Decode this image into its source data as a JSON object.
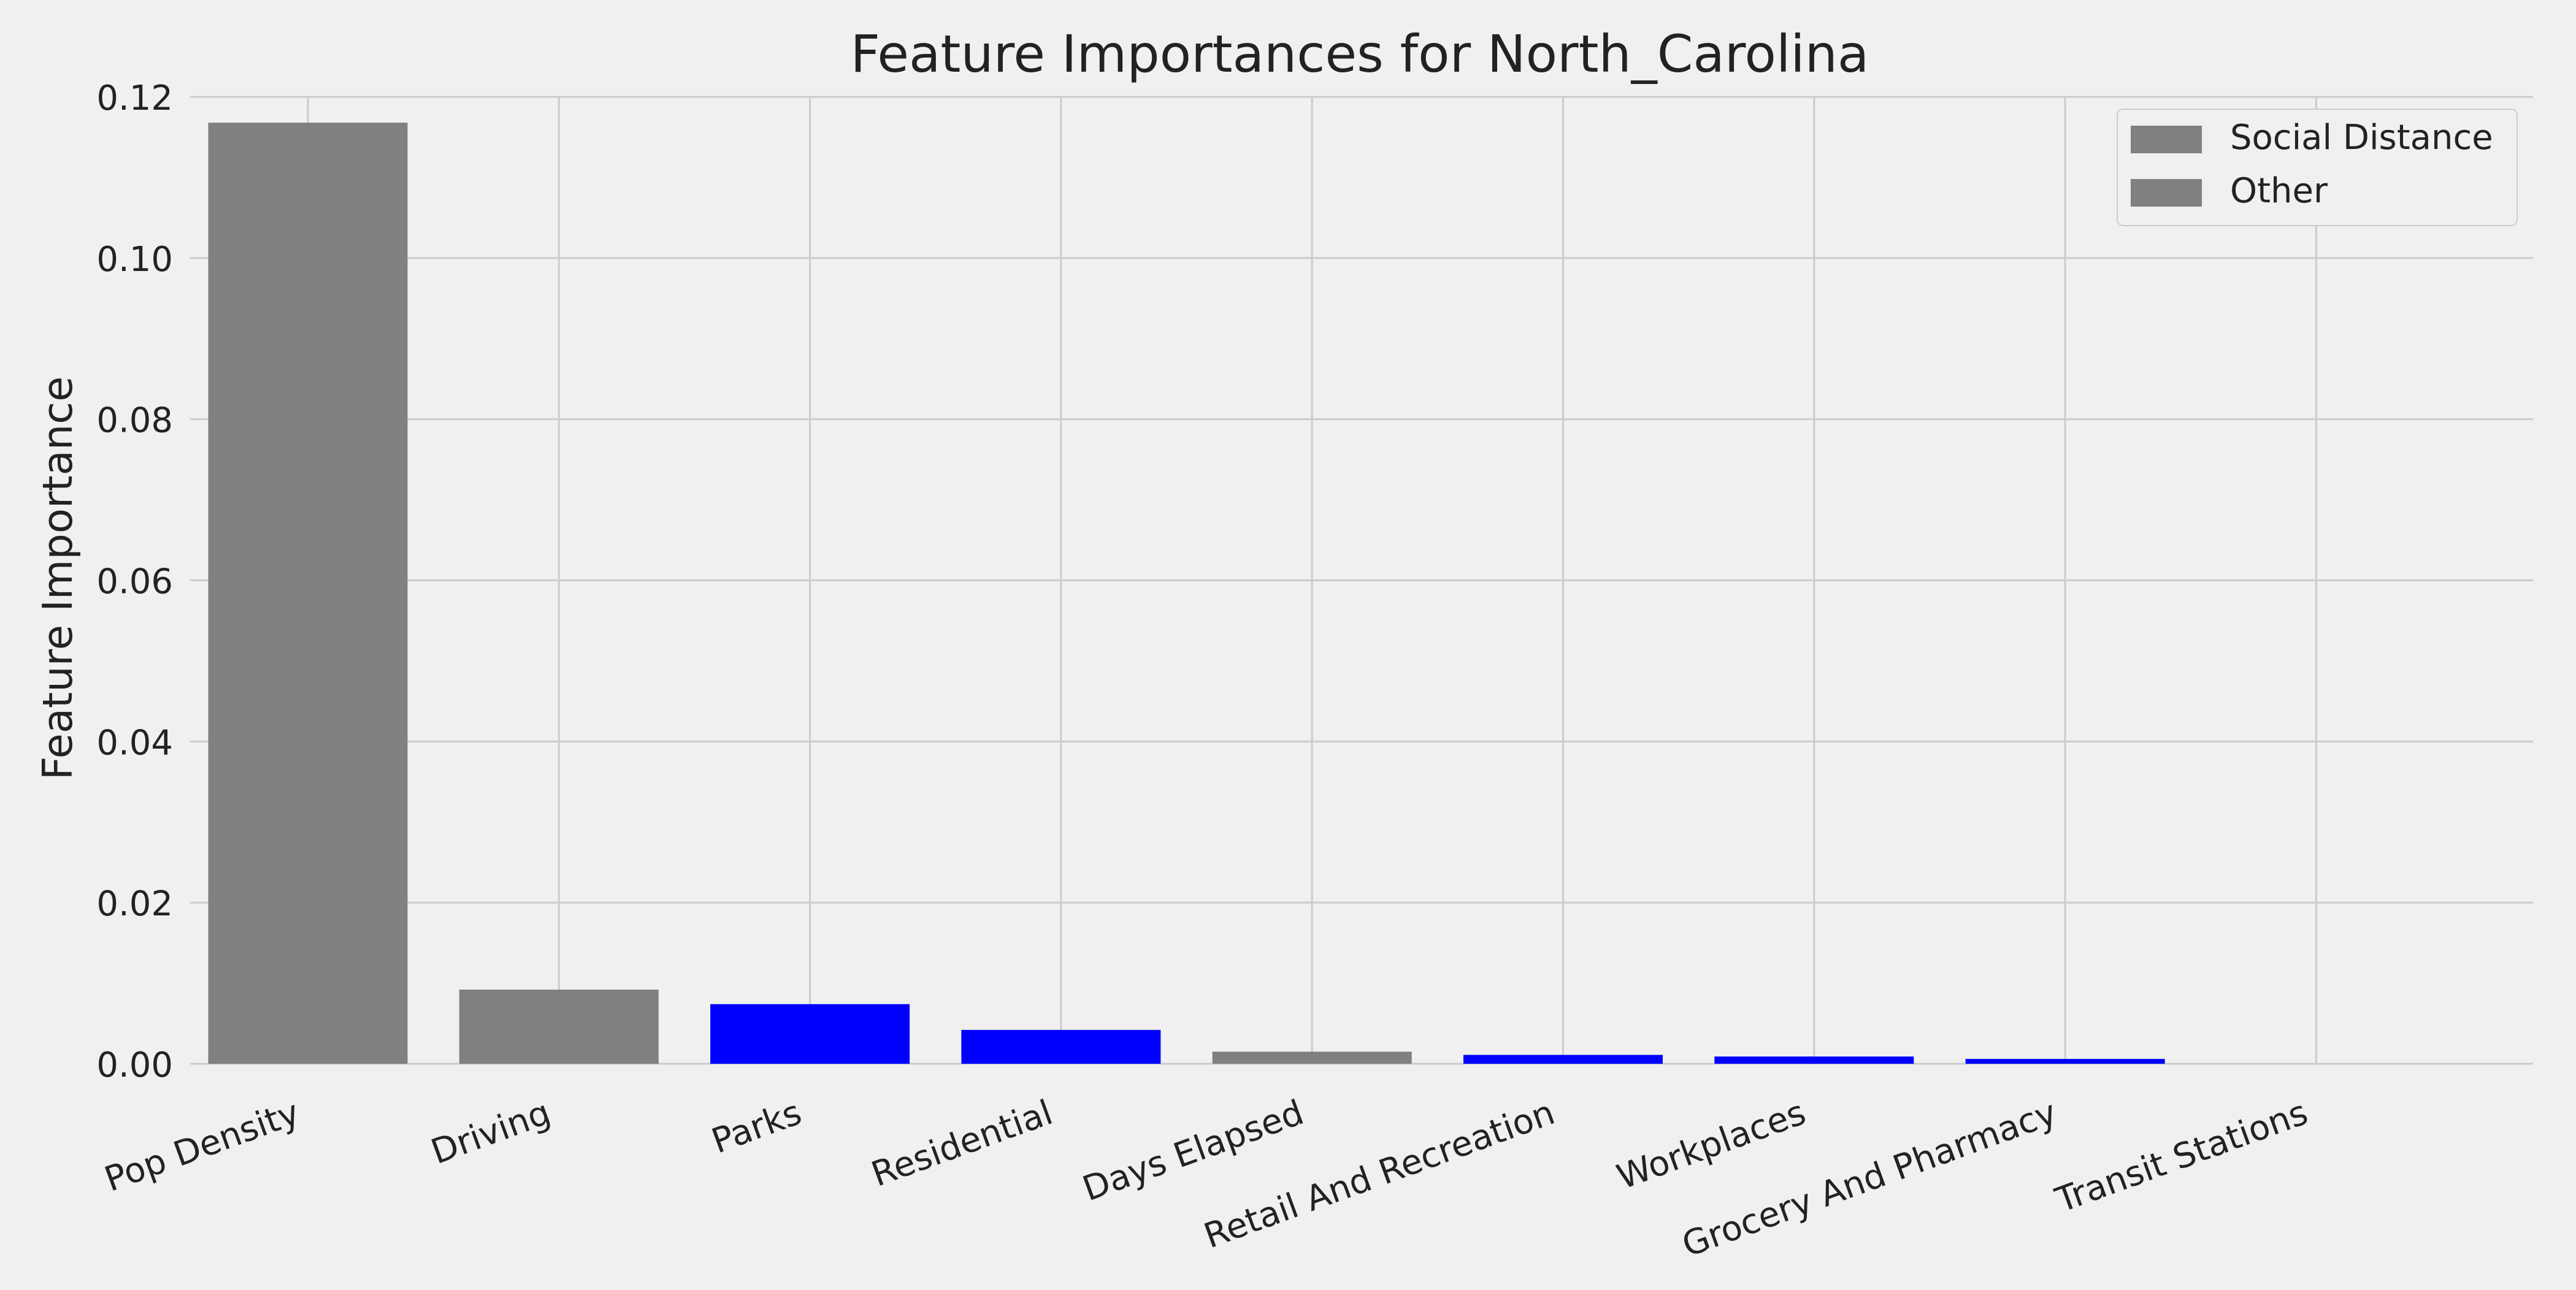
{
  "chart_data": {
    "type": "bar",
    "title": "Feature Importances for North_Carolina",
    "xlabel": "",
    "ylabel": "Feature Importance",
    "categories": [
      "Pop Density",
      "Driving",
      "Parks",
      "Residential",
      "Days Elapsed",
      "Retail And Recreation",
      "Workplaces",
      "Grocery And Pharmacy",
      "Transit Stations"
    ],
    "values": [
      0.1168,
      0.0092,
      0.0074,
      0.0042,
      0.0015,
      0.0011,
      0.0009,
      0.0006,
      0.0
    ],
    "bar_colors": [
      "#808080",
      "#808080",
      "#0000ff",
      "#0000ff",
      "#808080",
      "#0000ff",
      "#0000ff",
      "#0000ff",
      "#0000ff"
    ],
    "ylim": [
      0,
      0.12
    ],
    "yticks": [
      0.0,
      0.02,
      0.04,
      0.06,
      0.08,
      0.1,
      0.12
    ],
    "ytick_labels": [
      "0.00",
      "0.02",
      "0.04",
      "0.06",
      "0.08",
      "0.10",
      "0.12"
    ],
    "grid": true,
    "legend": {
      "placement": "top-right",
      "entries": [
        {
          "label": "Social Distance",
          "color": "#808080"
        },
        {
          "label": "Other",
          "color": "#808080"
        }
      ]
    },
    "colors": {
      "background": "#f0f0f0",
      "grid": "#cbcbcb",
      "text": "#222222"
    }
  }
}
